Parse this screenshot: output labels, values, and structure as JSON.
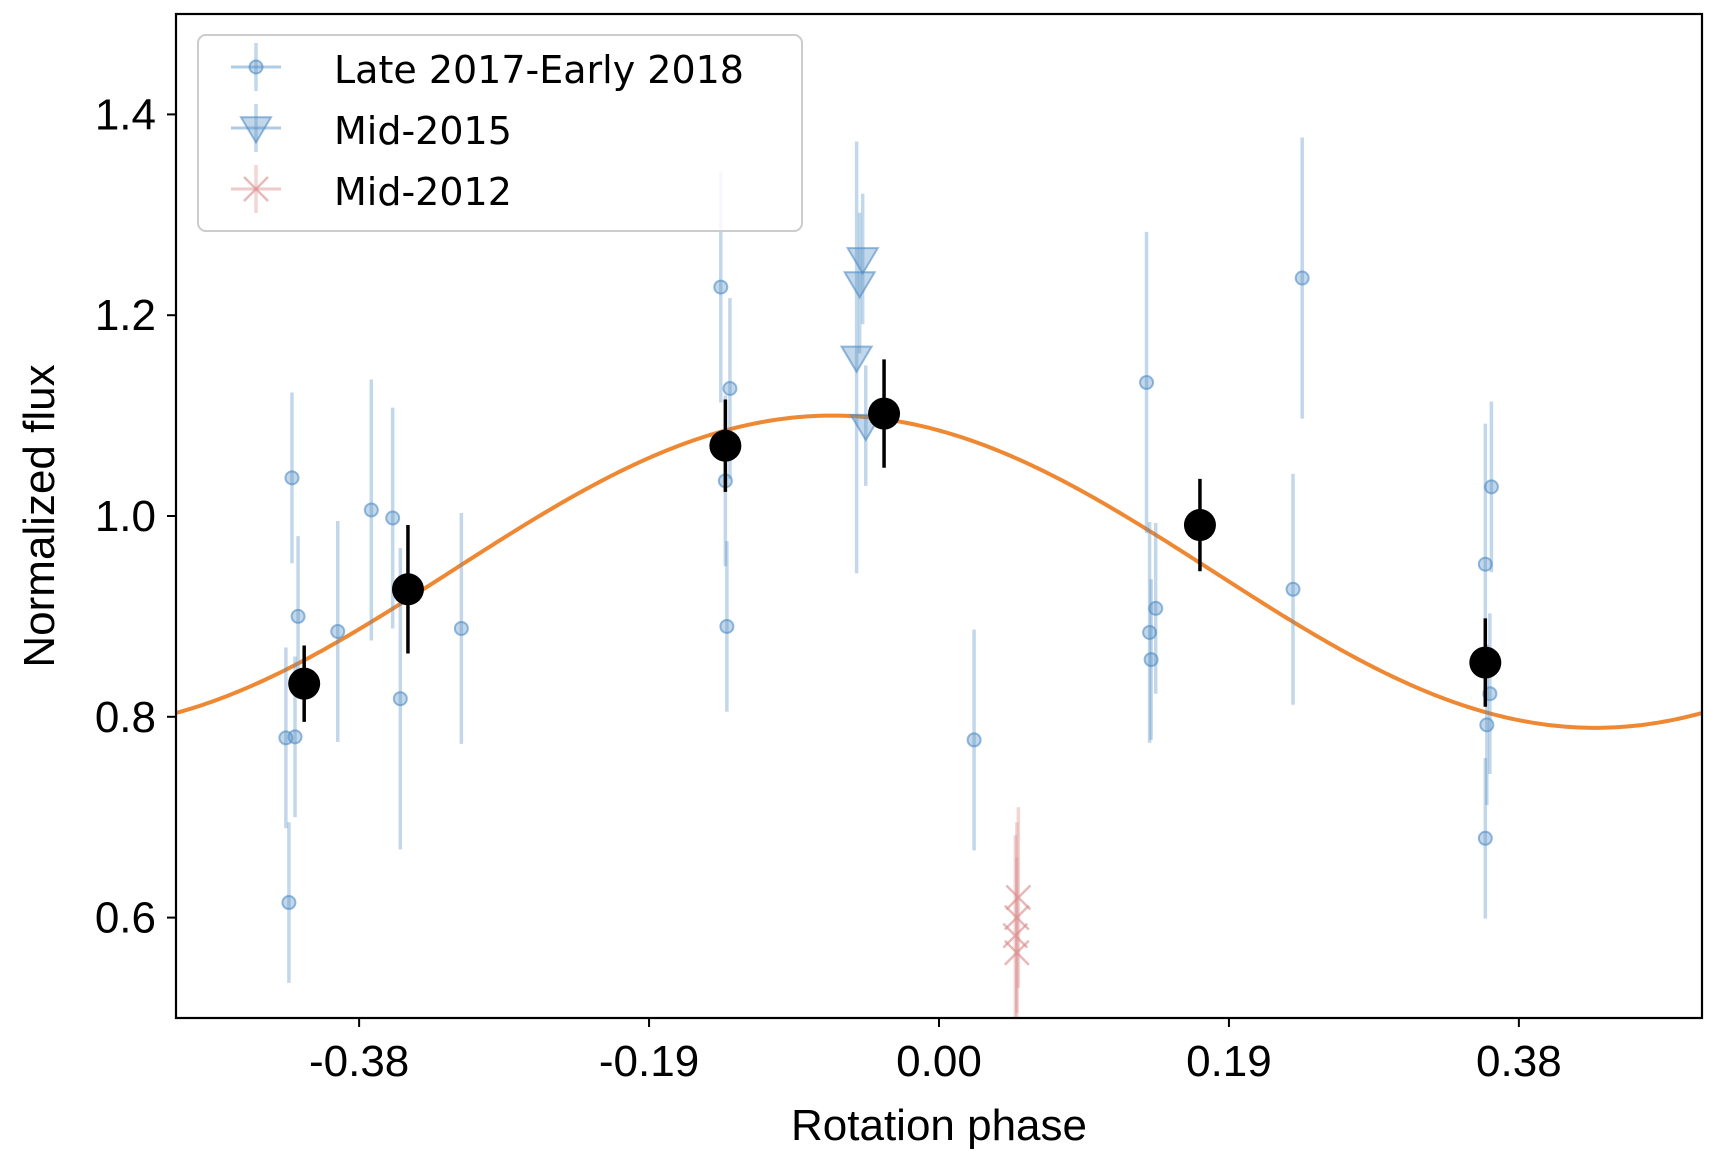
{
  "chart_data": {
    "type": "scatter",
    "xlabel": "Rotation phase",
    "ylabel": "Normalized flux",
    "xlim": [
      -0.5,
      0.5
    ],
    "ylim": [
      0.5,
      1.5
    ],
    "xticks": [
      -0.38,
      -0.19,
      0.0,
      0.19,
      0.38
    ],
    "xtick_labels": [
      "-0.38",
      "-0.19",
      "0.00",
      "0.19",
      "0.38"
    ],
    "yticks": [
      0.6,
      0.8,
      1.0,
      1.2,
      1.4
    ],
    "ytick_labels": [
      "0.6",
      "0.8",
      "1.0",
      "1.2",
      "1.4"
    ],
    "grid": false,
    "legend_position": "top-left",
    "colors": {
      "late": "#4f8cc4",
      "mid2015": "#4f8cc4",
      "mid2012": "#d98a8a",
      "binned": "#000000",
      "model": "#ee8833"
    },
    "series": [
      {
        "name": "Late 2017-Early 2018",
        "marker": "circle",
        "points": [
          {
            "x": -0.424,
            "y": 1.038,
            "err": 0.085
          },
          {
            "x": -0.42,
            "y": 0.9,
            "err": 0.08
          },
          {
            "x": -0.428,
            "y": 0.779,
            "err": 0.09
          },
          {
            "x": -0.422,
            "y": 0.78,
            "err": 0.08
          },
          {
            "x": -0.426,
            "y": 0.615,
            "err": 0.08
          },
          {
            "x": -0.394,
            "y": 0.885,
            "err": 0.11
          },
          {
            "x": -0.372,
            "y": 1.006,
            "err": 0.13
          },
          {
            "x": -0.358,
            "y": 0.998,
            "err": 0.11
          },
          {
            "x": -0.353,
            "y": 0.818,
            "err": 0.15
          },
          {
            "x": -0.313,
            "y": 0.888,
            "err": 0.115
          },
          {
            "x": -0.143,
            "y": 1.228,
            "err": 0.115
          },
          {
            "x": -0.137,
            "y": 1.127,
            "err": 0.09
          },
          {
            "x": -0.14,
            "y": 1.035,
            "err": 0.085
          },
          {
            "x": -0.139,
            "y": 0.89,
            "err": 0.085
          },
          {
            "x": 0.023,
            "y": 0.777,
            "err": 0.11
          },
          {
            "x": 0.136,
            "y": 1.133,
            "err": 0.15
          },
          {
            "x": 0.138,
            "y": 0.884,
            "err": 0.11
          },
          {
            "x": 0.139,
            "y": 0.857,
            "err": 0.08
          },
          {
            "x": 0.142,
            "y": 0.908,
            "err": 0.085
          },
          {
            "x": 0.232,
            "y": 0.927,
            "err": 0.115
          },
          {
            "x": 0.238,
            "y": 1.237,
            "err": 0.14
          },
          {
            "x": 0.358,
            "y": 0.952,
            "err": 0.14
          },
          {
            "x": 0.362,
            "y": 1.029,
            "err": 0.085
          },
          {
            "x": 0.361,
            "y": 0.823,
            "err": 0.08
          },
          {
            "x": 0.359,
            "y": 0.792,
            "err": 0.08
          },
          {
            "x": 0.358,
            "y": 0.679,
            "err": 0.08
          }
        ]
      },
      {
        "name": "Mid-2015",
        "marker": "triangle-down",
        "points": [
          {
            "x": -0.05,
            "y": 1.256,
            "err": 0.065
          },
          {
            "x": -0.052,
            "y": 1.232,
            "err": 0.07
          },
          {
            "x": -0.054,
            "y": 1.158,
            "err": 0.215
          },
          {
            "x": -0.048,
            "y": 1.09,
            "err": 0.06
          }
        ]
      },
      {
        "name": "Mid-2012",
        "marker": "x",
        "points": [
          {
            "x": 0.052,
            "y": 0.62,
            "err": 0.09
          },
          {
            "x": 0.051,
            "y": 0.6,
            "err": 0.095
          },
          {
            "x": 0.05,
            "y": 0.582,
            "err": 0.1
          },
          {
            "x": 0.051,
            "y": 0.565,
            "err": 0.095
          }
        ]
      }
    ],
    "binned": {
      "points": [
        {
          "x": -0.416,
          "y": 0.833,
          "err": 0.038
        },
        {
          "x": -0.348,
          "y": 0.927,
          "err": 0.064
        },
        {
          "x": -0.14,
          "y": 1.07,
          "err": 0.046
        },
        {
          "x": -0.036,
          "y": 1.102,
          "err": 0.054
        },
        {
          "x": 0.171,
          "y": 0.991,
          "err": 0.046
        },
        {
          "x": 0.358,
          "y": 0.854,
          "err": 0.044
        }
      ]
    },
    "model": {
      "mean": 0.9445,
      "amplitude": 0.1555,
      "peak_phase": -0.07
    }
  }
}
